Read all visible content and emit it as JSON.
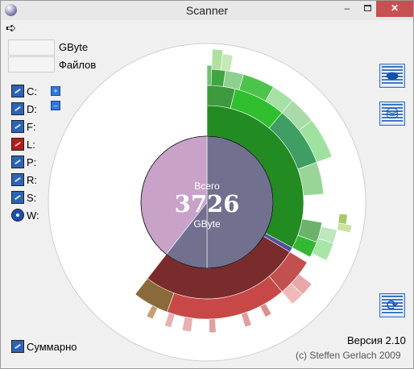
{
  "window": {
    "title": "Scanner",
    "minimize": "–",
    "close": "✕"
  },
  "menu": {
    "arrow": "➪"
  },
  "fields": {
    "size_value": "",
    "size_unit": "GByte",
    "files_value": "",
    "files_unit": "Файлов"
  },
  "drives": [
    {
      "label": "C:",
      "status": "normal"
    },
    {
      "label": "D:",
      "status": "normal"
    },
    {
      "label": "F:",
      "status": "normal"
    },
    {
      "label": "L:",
      "status": "error"
    },
    {
      "label": "P:",
      "status": "normal"
    },
    {
      "label": "R:",
      "status": "normal"
    },
    {
      "label": "S:",
      "status": "normal"
    },
    {
      "label": "W:",
      "status": "optical"
    }
  ],
  "zoom": {
    "in": "+",
    "out": "–"
  },
  "toolbar": {
    "search_icon": "search-icon",
    "delete_icon": "trash-icon",
    "refresh_icon": "refresh-icon"
  },
  "center": {
    "label": "Всего",
    "total": "3726",
    "unit": "GByte"
  },
  "footer": {
    "summary": "Суммарно",
    "version": "Версия 2.10",
    "copyright": "(c) Steffen Gerlach 2009"
  },
  "colors": {
    "green": "#228b22",
    "red": "#b03a3a",
    "purple": "#c8a2c8",
    "slate": "#71708f"
  }
}
